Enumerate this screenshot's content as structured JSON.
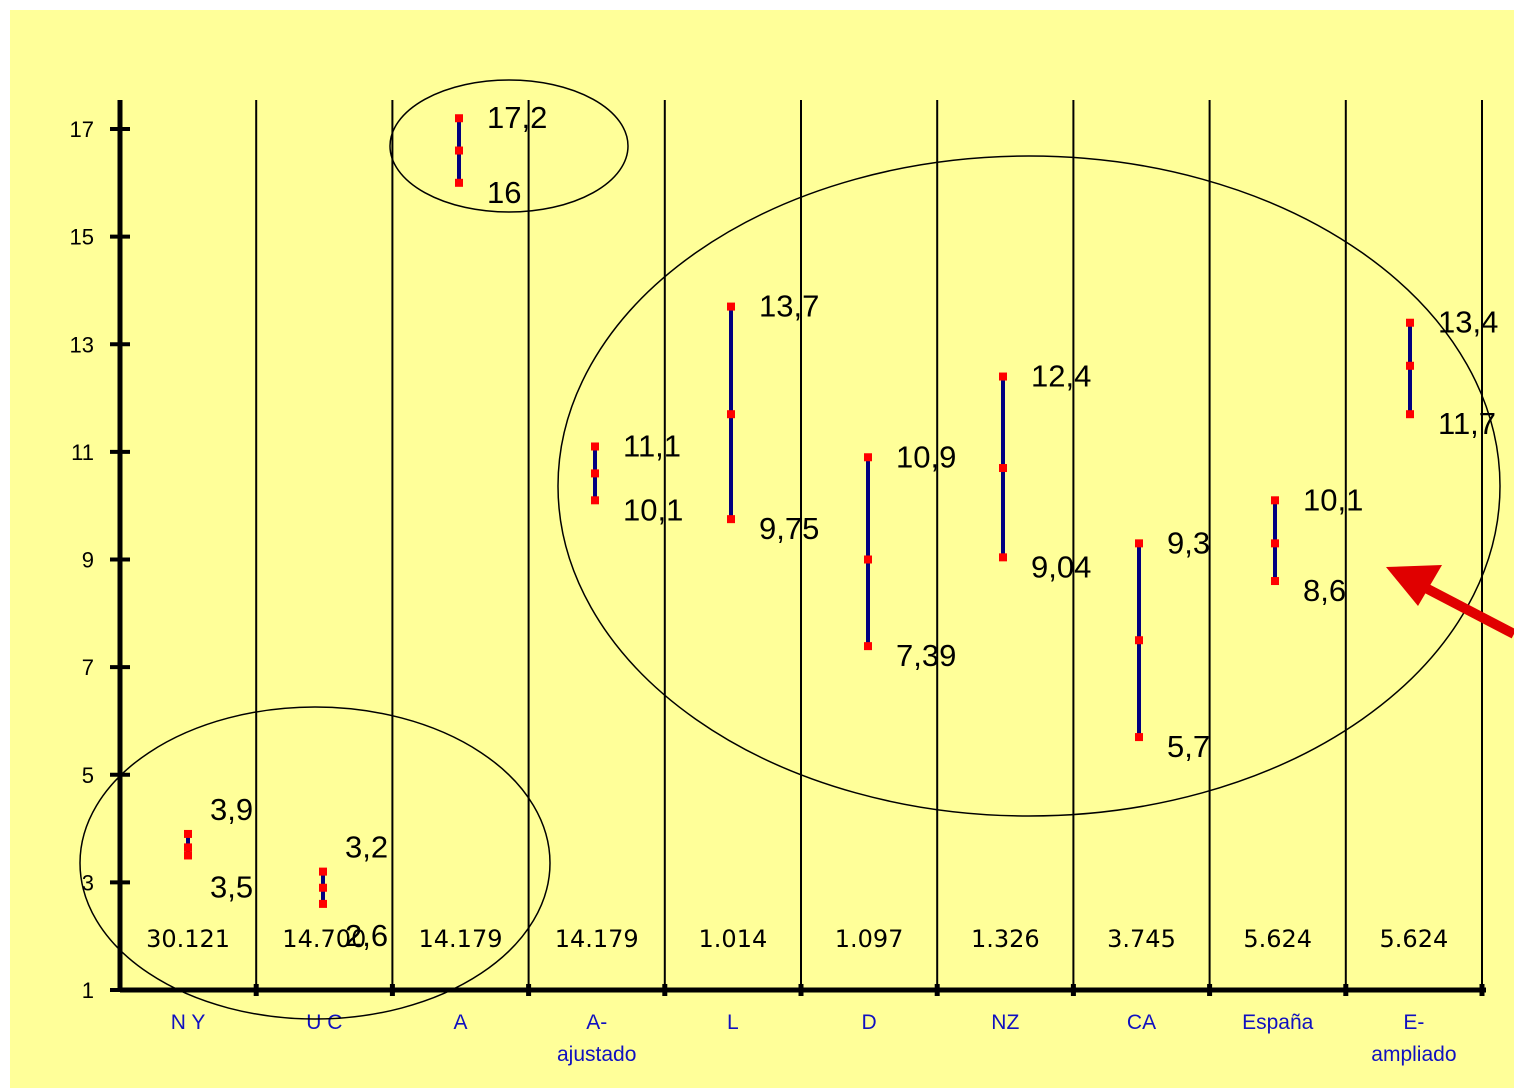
{
  "chart_data": {
    "type": "range",
    "title": "",
    "xlabel": "",
    "ylabel": "",
    "ylim": [
      1,
      17.5
    ],
    "yticks": [
      1,
      3,
      5,
      7,
      9,
      11,
      13,
      15,
      17
    ],
    "background": "#ffff99",
    "line_color": "#000080",
    "marker_color": "#ff0000",
    "arrow_color": "#e00000",
    "categories": [
      {
        "label": "N Y",
        "label2": "",
        "low": 3.5,
        "high": 3.9,
        "mid": 3.65,
        "low_label": "3,5",
        "high_label": "3,9",
        "count": "30.121"
      },
      {
        "label": "U C",
        "label2": "",
        "low": 2.6,
        "high": 3.2,
        "mid": 2.9,
        "low_label": "2,6",
        "high_label": "3,2",
        "count": "14.700"
      },
      {
        "label": "A",
        "label2": "",
        "low": 16,
        "high": 17.2,
        "mid": 16.6,
        "low_label": "16",
        "high_label": "17,2",
        "count": "14.179"
      },
      {
        "label": "A-",
        "label2": "ajustado",
        "low": 10.1,
        "high": 11.1,
        "mid": 10.6,
        "low_label": "10,1",
        "high_label": "11,1",
        "count": "14.179"
      },
      {
        "label": "L",
        "label2": "",
        "low": 9.75,
        "high": 13.7,
        "mid": 11.7,
        "low_label": "9,75",
        "high_label": "13,7",
        "count": "1.014"
      },
      {
        "label": "D",
        "label2": "",
        "low": 7.39,
        "high": 10.9,
        "mid": 9.0,
        "low_label": "7,39",
        "high_label": "10,9",
        "count": "1.097"
      },
      {
        "label": "NZ",
        "label2": "",
        "low": 9.04,
        "high": 12.4,
        "mid": 10.7,
        "low_label": "9,04",
        "high_label": "12,4",
        "count": "1.326"
      },
      {
        "label": "CA",
        "label2": "",
        "low": 5.7,
        "high": 9.3,
        "mid": 7.5,
        "low_label": "5,7",
        "high_label": "9,3",
        "count": "3.745"
      },
      {
        "label": "España",
        "label2": "",
        "low": 8.6,
        "high": 10.1,
        "mid": 9.3,
        "low_label": "8,6",
        "high_label": "10,1",
        "count": "5.624"
      },
      {
        "label": "E-",
        "label2": "ampliado",
        "low": 11.7,
        "high": 13.4,
        "mid": 12.6,
        "low_label": "11,7",
        "high_label": "13,4",
        "count": "5.624"
      }
    ],
    "annotations": {
      "circles": [
        "groups N Y and U C",
        "group A",
        "groups A-ajustado through E-ampliado"
      ],
      "arrow": "pointing to España range"
    }
  }
}
